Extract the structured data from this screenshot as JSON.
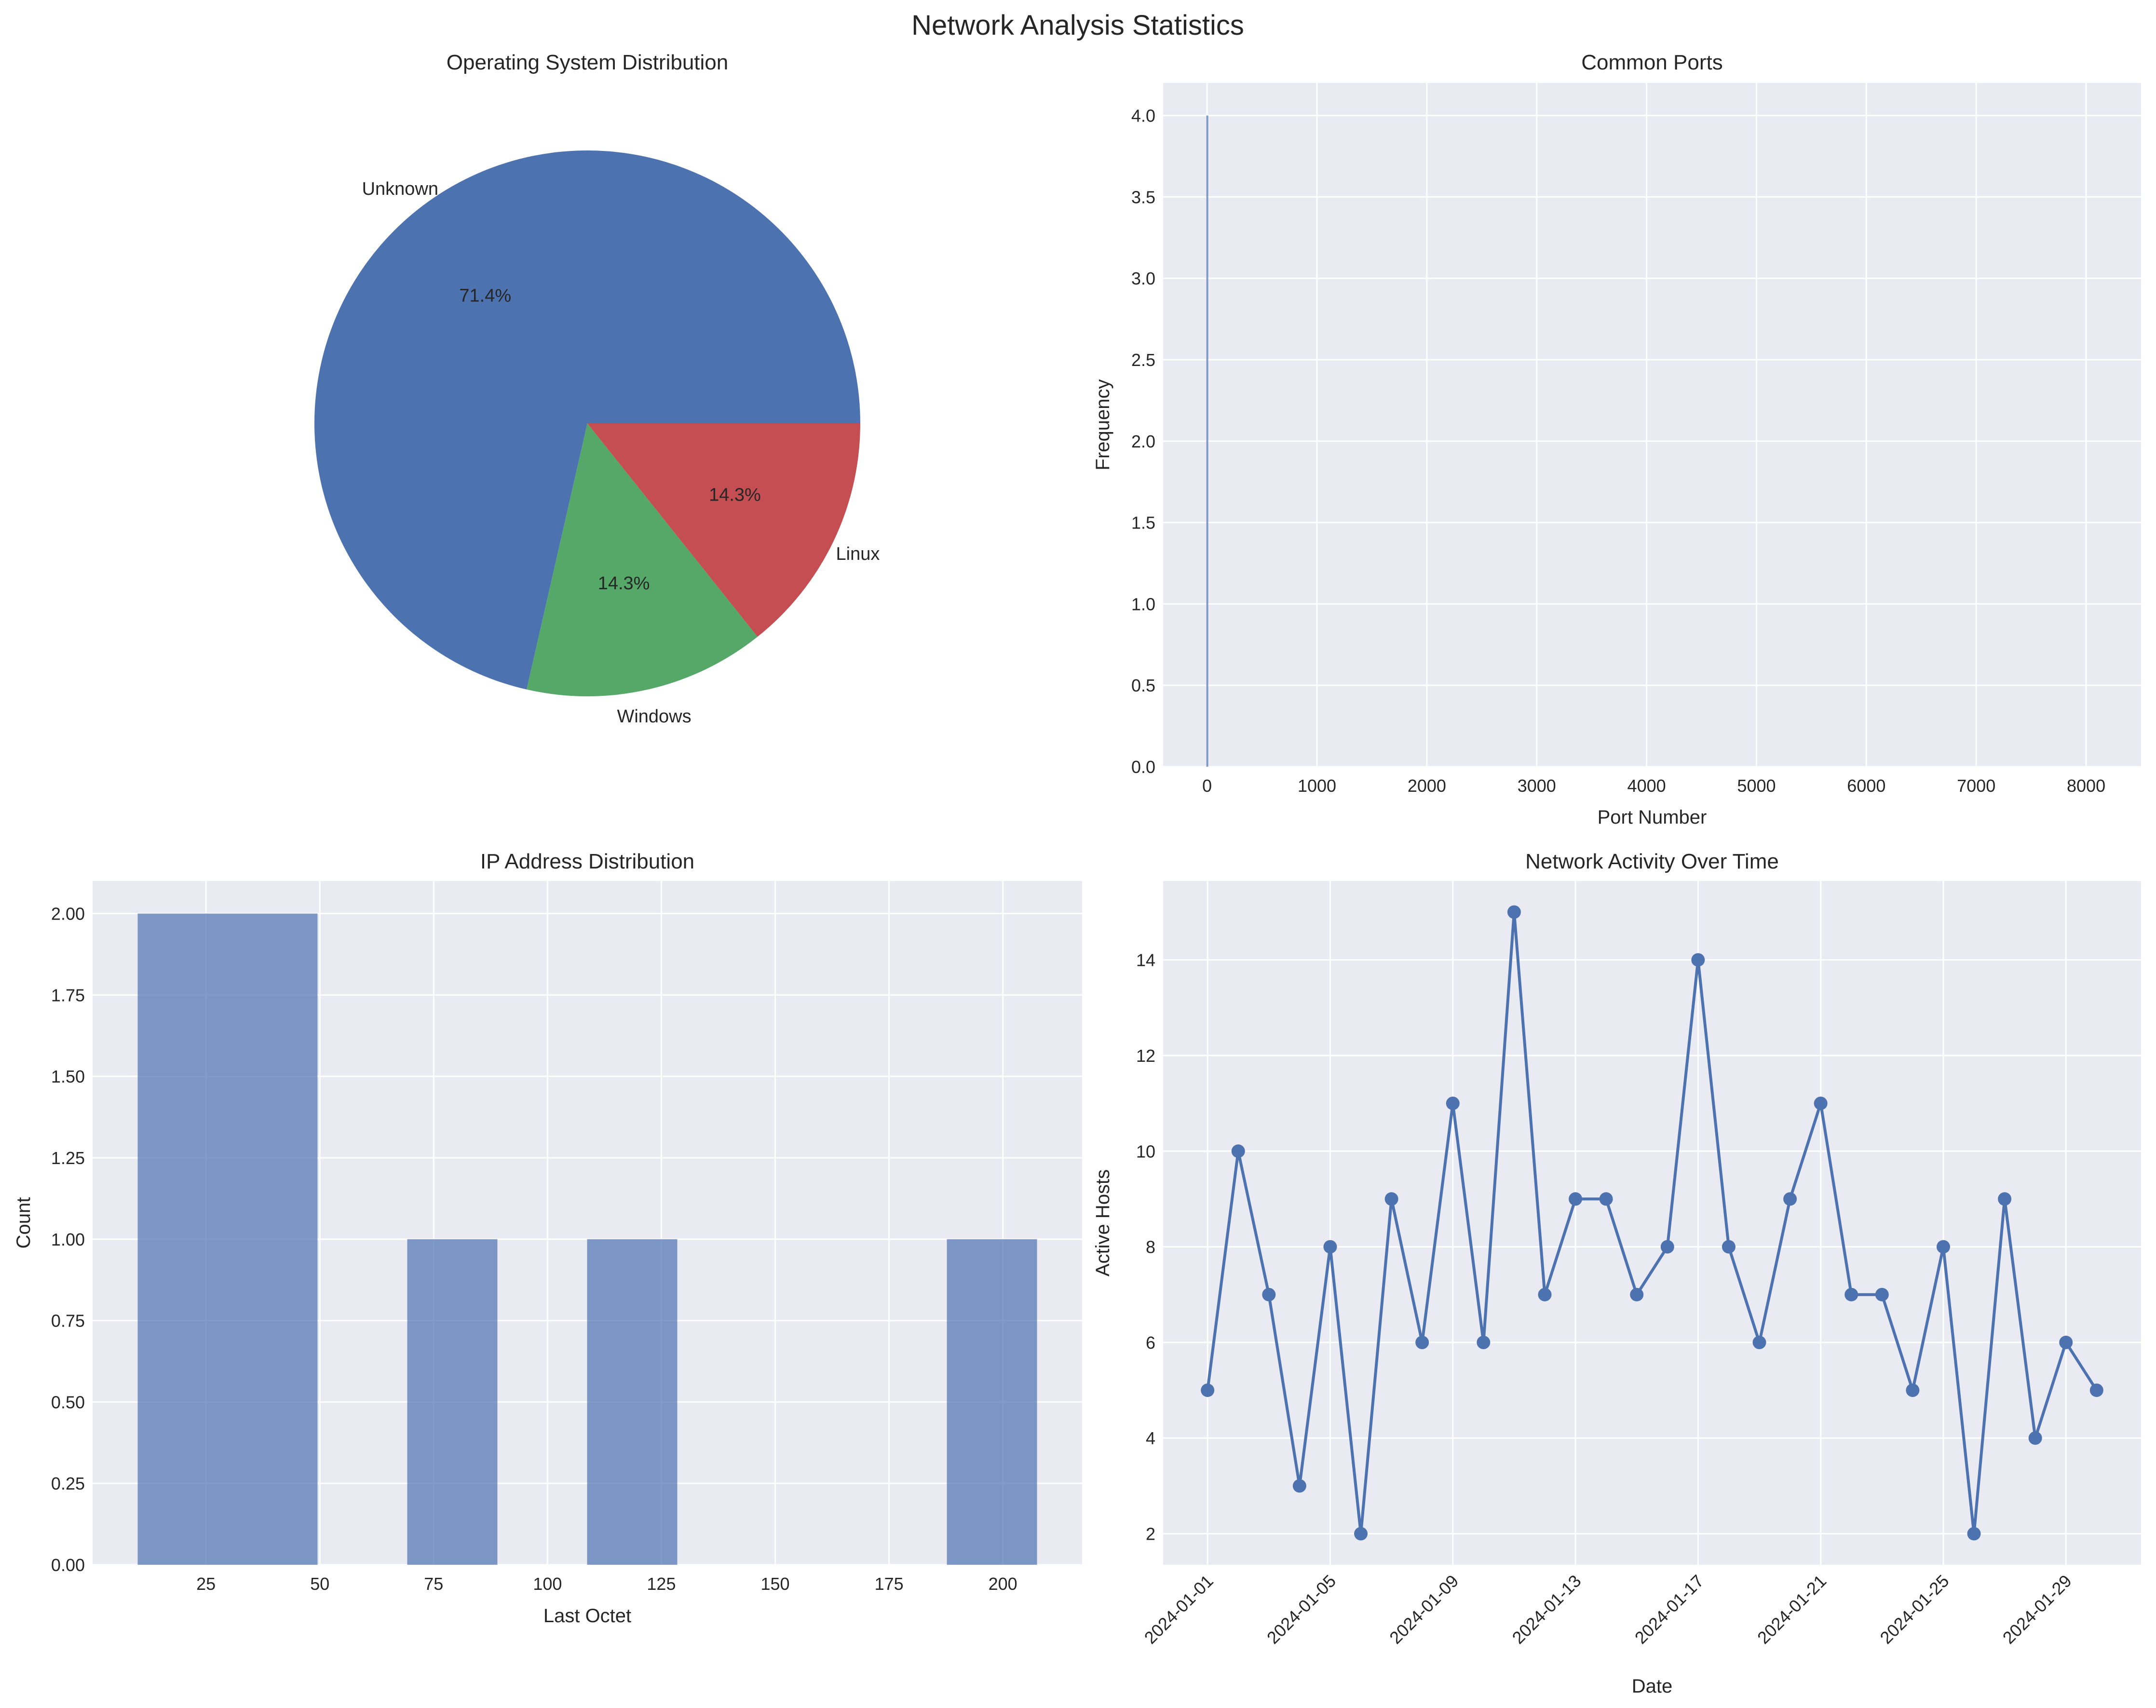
{
  "figure": {
    "title": "Network Analysis Statistics"
  },
  "colors": {
    "background": "#ffffff",
    "axes_face": "#eaeaf2",
    "grid": "#ffffff",
    "text": "#262626",
    "blue": "#4c72b0",
    "green": "#55a868",
    "red": "#c44e52"
  },
  "chart_data": [
    {
      "id": "os",
      "type": "pie",
      "title": "Operating System Distribution",
      "labels": [
        "Unknown",
        "Windows",
        "Linux"
      ],
      "values": [
        5,
        1,
        1
      ],
      "percent_labels": [
        "71.4%",
        "14.3%",
        "14.3%"
      ],
      "colors": [
        "#4c72b0",
        "#55a868",
        "#c44e52"
      ]
    },
    {
      "id": "ports",
      "type": "bar",
      "title": "Common Ports",
      "xlabel": "Port Number",
      "ylabel": "Frequency",
      "x": [
        2
      ],
      "values": [
        4
      ],
      "xlim": [
        -400,
        8500
      ],
      "ylim": [
        0,
        4.2
      ],
      "xticks": [
        0,
        1000,
        2000,
        3000,
        4000,
        5000,
        6000,
        7000,
        8000
      ],
      "yticks": [
        0.0,
        0.5,
        1.0,
        1.5,
        2.0,
        2.5,
        3.0,
        3.5,
        4.0
      ],
      "ytick_labels": [
        "0.0",
        "0.5",
        "1.0",
        "1.5",
        "2.0",
        "2.5",
        "3.0",
        "3.5",
        "4.0"
      ]
    },
    {
      "id": "ip",
      "type": "bar",
      "title": "IP Address Distribution",
      "xlabel": "Last Octet",
      "ylabel": "Count",
      "bins": [
        {
          "start": 10,
          "end": 49.5,
          "count": 2
        },
        {
          "start": 69.2,
          "end": 89,
          "count": 1
        },
        {
          "start": 108.7,
          "end": 128.5,
          "count": 1
        },
        {
          "start": 187.7,
          "end": 207.5,
          "count": 1
        }
      ],
      "xlim": [
        0.1,
        217.4
      ],
      "ylim": [
        0,
        2.1
      ],
      "xticks": [
        25,
        50,
        75,
        100,
        125,
        150,
        175,
        200
      ],
      "yticks": [
        0,
        0.25,
        0.5,
        0.75,
        1.0,
        1.25,
        1.5,
        1.75,
        2.0
      ],
      "ytick_labels": [
        "0.00",
        "0.25",
        "0.50",
        "0.75",
        "1.00",
        "1.25",
        "1.50",
        "1.75",
        "2.00"
      ]
    },
    {
      "id": "activity",
      "type": "line",
      "title": "Network Activity Over Time",
      "xlabel": "Date",
      "ylabel": "Active Hosts",
      "x_start": "2024-01-01",
      "values": [
        5,
        10,
        7,
        3,
        8,
        2,
        9,
        6,
        11,
        6,
        15,
        7,
        9,
        9,
        7,
        8,
        14,
        8,
        6,
        9,
        11,
        7,
        7,
        5,
        8,
        2,
        9,
        4,
        6,
        5
      ],
      "xlim": [
        0,
        30
      ],
      "ylim": [
        1.35,
        15.65
      ],
      "xticks": [
        0,
        4,
        8,
        12,
        16,
        20,
        24,
        28
      ],
      "xtick_labels": [
        "2024-01-01",
        "2024-01-05",
        "2024-01-09",
        "2024-01-13",
        "2024-01-17",
        "2024-01-21",
        "2024-01-25",
        "2024-01-29"
      ],
      "yticks": [
        2,
        4,
        6,
        8,
        10,
        12,
        14
      ],
      "ytick_labels": [
        "2",
        "4",
        "6",
        "8",
        "10",
        "12",
        "14"
      ]
    }
  ]
}
